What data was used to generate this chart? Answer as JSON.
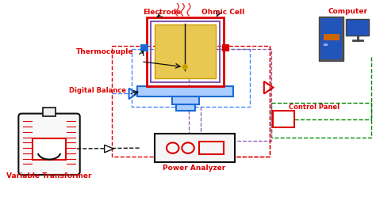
{
  "bg_color": "#ffffff",
  "red": "#dd0000",
  "blue": "#1a6ad4",
  "purple": "#8855aa",
  "green": "#008800",
  "black": "#111111",
  "orange": "#cc6600",
  "gray_dark": "#444444",
  "gray_mid": "#777777",
  "yellow_fill": "#e8c850",
  "yellow_edge": "#c8a000",
  "blue_fill": "#aaccff",
  "labels": {
    "electrode": "Electrode",
    "ohmic_cell": "Ohmic Cell",
    "thermocouple": "Thermocouple",
    "digital_balance": "Digital Balance",
    "control_panel": "Control Panel",
    "computer": "Computer",
    "variable_transformer": "Variable Transformer",
    "power_analyzer": "Power Analyzer"
  }
}
